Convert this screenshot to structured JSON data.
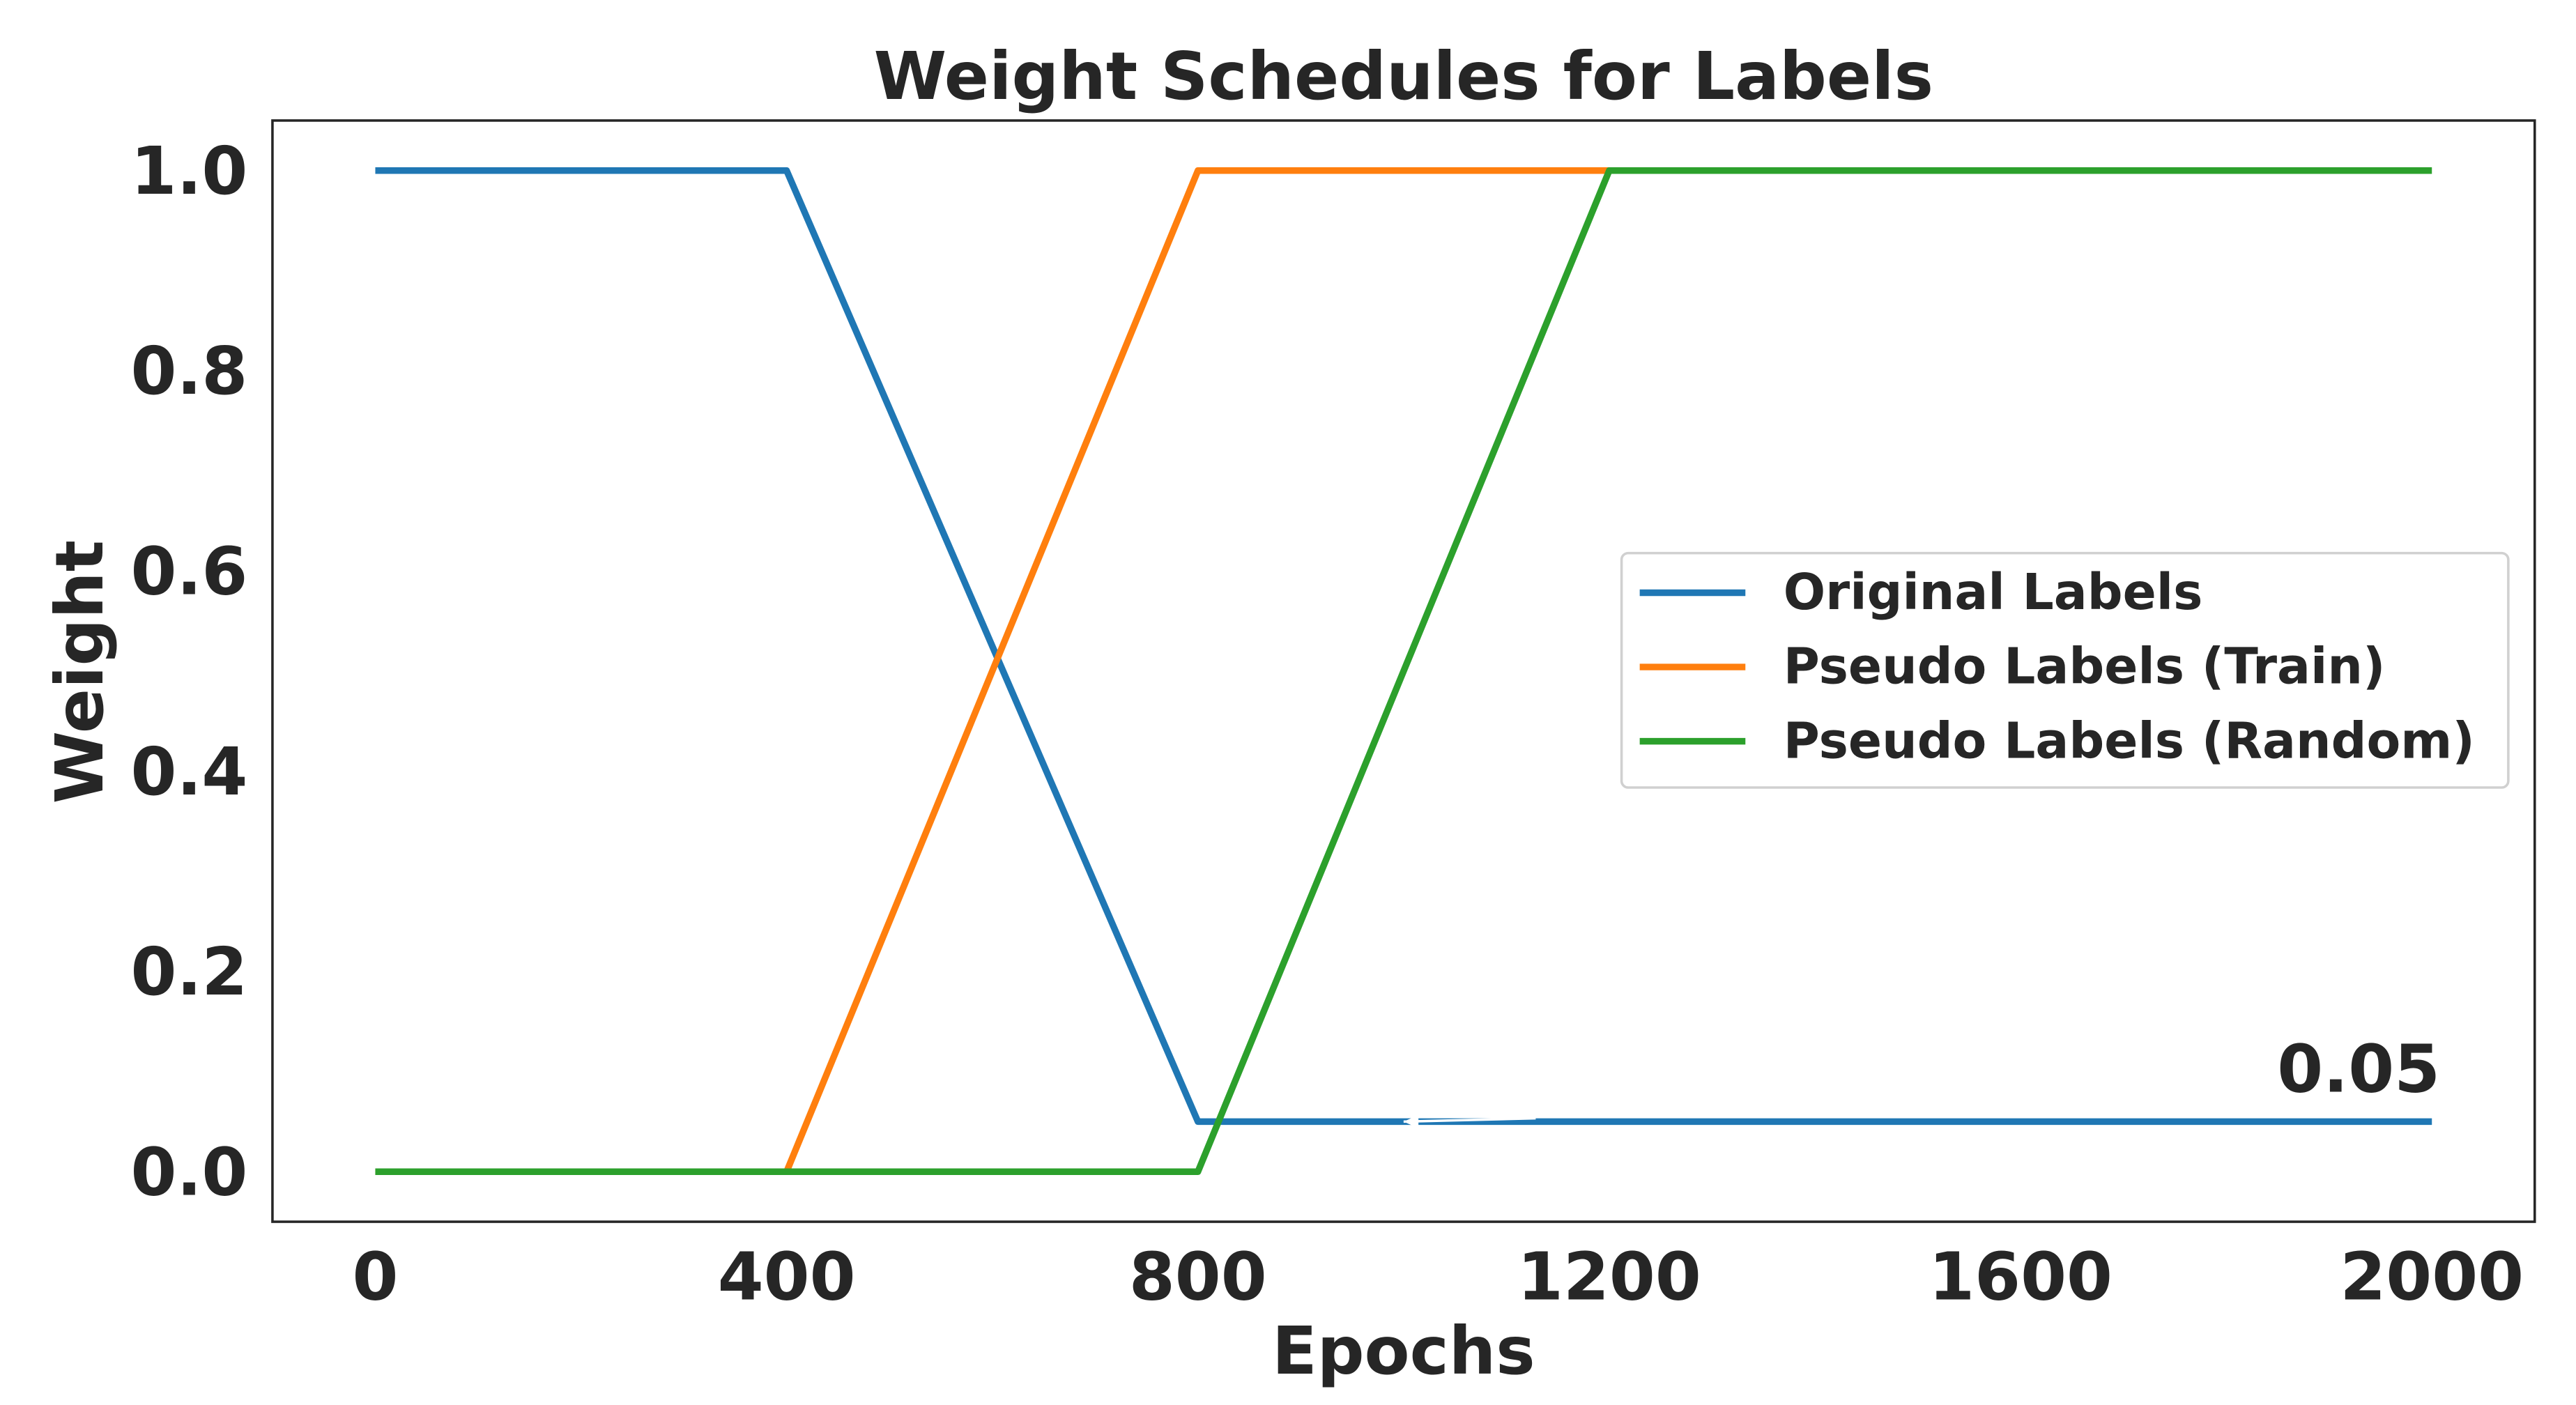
{
  "chart_data": {
    "type": "line",
    "title": "Weight Schedules for Labels",
    "xlabel": "Epochs",
    "ylabel": "Weight",
    "xlim": [
      -100,
      2100
    ],
    "ylim": [
      -0.05,
      1.05
    ],
    "xticks": [
      0,
      400,
      800,
      1200,
      1600,
      2000
    ],
    "xtick_labels": [
      "0",
      "400",
      "800",
      "1200",
      "1600",
      "2000"
    ],
    "yticks": [
      0.0,
      0.2,
      0.4,
      0.6,
      0.8,
      1.0
    ],
    "ytick_labels": [
      "0.0",
      "0.2",
      "0.4",
      "0.6",
      "0.8",
      "1.0"
    ],
    "grid": false,
    "legend_position": "center-right",
    "series": [
      {
        "name": "Original Labels",
        "color": "#1f77b4",
        "x": [
          0,
          400,
          800,
          2000
        ],
        "y": [
          1.0,
          1.0,
          0.05,
          0.05
        ]
      },
      {
        "name": "Pseudo Labels (Train)",
        "color": "#ff7f0e",
        "x": [
          0,
          400,
          800,
          1200
        ],
        "y": [
          0.0,
          0.0,
          1.0,
          1.0
        ]
      },
      {
        "name": "Pseudo Labels (Random)",
        "color": "#2ca02c",
        "x": [
          0,
          800,
          1200,
          2000
        ],
        "y": [
          0.0,
          0.0,
          1.0,
          1.0
        ]
      }
    ],
    "annotations": [
      {
        "text": "0.05",
        "x": 2000,
        "y": 0.05,
        "arrow_from_x": 1000,
        "arrow_from_y": 0.05
      }
    ]
  }
}
